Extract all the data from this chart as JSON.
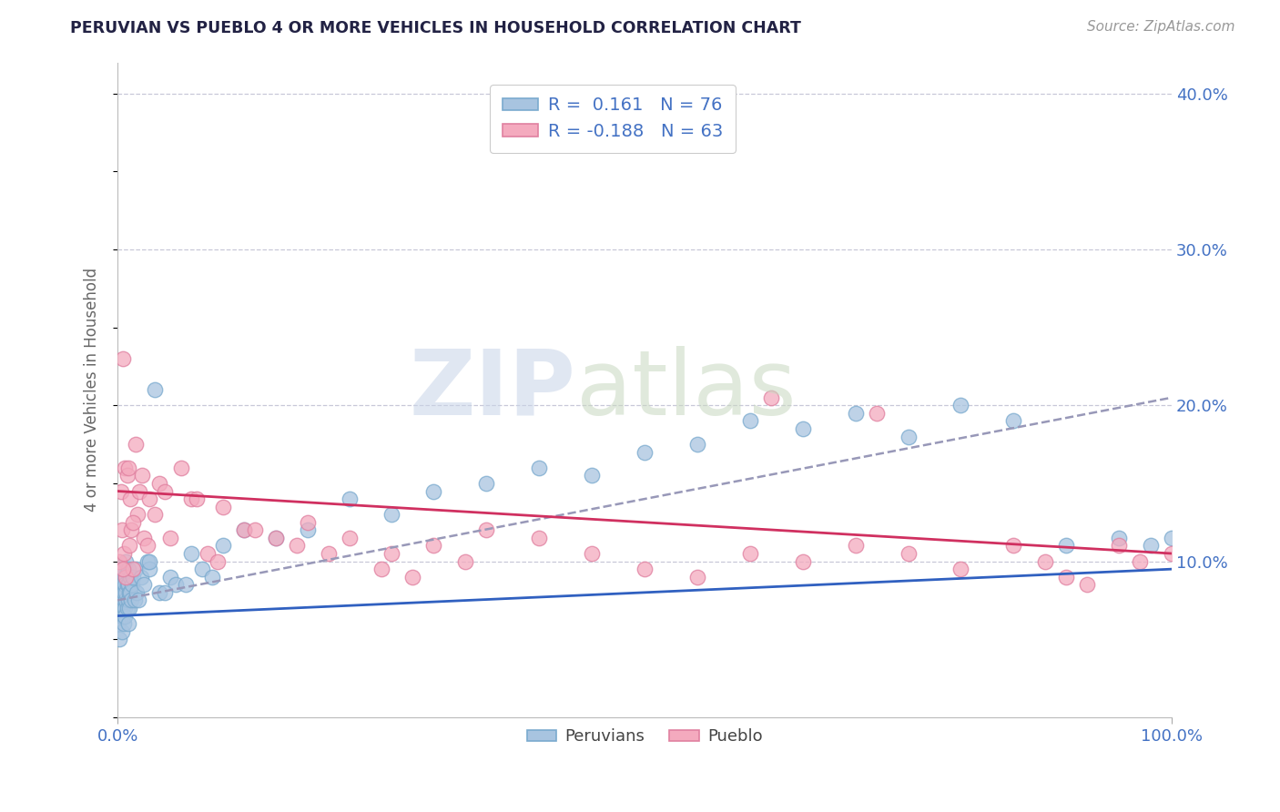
{
  "title": "PERUVIAN VS PUEBLO 4 OR MORE VEHICLES IN HOUSEHOLD CORRELATION CHART",
  "source": "Source: ZipAtlas.com",
  "ylabel_label": "4 or more Vehicles in Household",
  "xlim": [
    0.0,
    100.0
  ],
  "ylim": [
    0.0,
    42.0
  ],
  "yticks": [
    10.0,
    20.0,
    30.0,
    40.0
  ],
  "xticks": [
    0.0,
    100.0
  ],
  "legend_line1": "R =  0.161   N = 76",
  "legend_line2": "R = -0.188   N = 63",
  "blue_color": "#a8c4e0",
  "blue_edge": "#7aaace",
  "pink_color": "#f4aabe",
  "pink_edge": "#e080a0",
  "trend_blue": "#3060c0",
  "trend_pink": "#d03060",
  "trend_dash": "#9898b8",
  "grid_color": "#c8c8d8",
  "title_color": "#222244",
  "source_color": "#999999",
  "axis_tick_color": "#4472c4",
  "ylabel_color": "#666666",
  "peruvian_x": [
    0.1,
    0.2,
    0.2,
    0.3,
    0.3,
    0.3,
    0.4,
    0.4,
    0.4,
    0.5,
    0.5,
    0.5,
    0.5,
    0.6,
    0.6,
    0.6,
    0.7,
    0.7,
    0.7,
    0.7,
    0.8,
    0.8,
    0.8,
    0.9,
    0.9,
    1.0,
    1.0,
    1.0,
    1.0,
    1.1,
    1.1,
    1.2,
    1.2,
    1.3,
    1.4,
    1.5,
    1.6,
    1.7,
    1.8,
    2.0,
    2.2,
    2.5,
    2.8,
    3.0,
    3.5,
    4.0,
    5.0,
    5.5,
    6.5,
    8.0,
    10.0,
    12.0,
    15.0,
    18.0,
    22.0,
    26.0,
    30.0,
    35.0,
    40.0,
    45.0,
    50.0,
    55.0,
    60.0,
    65.0,
    70.0,
    75.0,
    80.0,
    85.0,
    90.0,
    95.0,
    98.0,
    100.0,
    3.0,
    4.5,
    7.0,
    9.0
  ],
  "peruvian_y": [
    6.0,
    7.5,
    5.0,
    8.0,
    6.5,
    9.0,
    7.0,
    8.5,
    5.5,
    8.0,
    7.0,
    6.5,
    9.5,
    7.5,
    8.0,
    6.0,
    7.0,
    9.0,
    8.5,
    6.5,
    7.5,
    8.0,
    10.0,
    8.5,
    7.0,
    7.5,
    8.5,
    9.5,
    6.0,
    8.0,
    7.0,
    9.0,
    8.0,
    7.5,
    8.5,
    9.0,
    7.5,
    9.5,
    8.0,
    7.5,
    9.0,
    8.5,
    10.0,
    9.5,
    21.0,
    8.0,
    9.0,
    8.5,
    8.5,
    9.5,
    11.0,
    12.0,
    11.5,
    12.0,
    14.0,
    13.0,
    14.5,
    15.0,
    16.0,
    15.5,
    17.0,
    17.5,
    19.0,
    18.5,
    19.5,
    18.0,
    20.0,
    19.0,
    11.0,
    11.5,
    11.0,
    11.5,
    10.0,
    8.0,
    10.5,
    9.0
  ],
  "pueblo_x": [
    0.2,
    0.3,
    0.4,
    0.5,
    0.6,
    0.7,
    0.8,
    0.9,
    1.0,
    1.1,
    1.2,
    1.3,
    1.5,
    1.7,
    1.9,
    2.1,
    2.3,
    2.5,
    3.0,
    3.5,
    4.0,
    5.0,
    6.0,
    7.0,
    8.5,
    10.0,
    12.0,
    15.0,
    18.0,
    22.0,
    26.0,
    30.0,
    35.0,
    40.0,
    45.0,
    50.0,
    55.0,
    60.0,
    65.0,
    70.0,
    75.0,
    80.0,
    85.0,
    88.0,
    90.0,
    92.0,
    95.0,
    97.0,
    100.0,
    62.0,
    72.0,
    0.5,
    1.5,
    2.8,
    4.5,
    7.5,
    9.5,
    13.0,
    17.0,
    20.0,
    25.0,
    28.0,
    33.0
  ],
  "pueblo_y": [
    10.0,
    14.5,
    12.0,
    23.0,
    10.5,
    16.0,
    9.0,
    15.5,
    16.0,
    11.0,
    14.0,
    12.0,
    9.5,
    17.5,
    13.0,
    14.5,
    15.5,
    11.5,
    14.0,
    13.0,
    15.0,
    11.5,
    16.0,
    14.0,
    10.5,
    13.5,
    12.0,
    11.5,
    12.5,
    11.5,
    10.5,
    11.0,
    12.0,
    11.5,
    10.5,
    9.5,
    9.0,
    10.5,
    10.0,
    11.0,
    10.5,
    9.5,
    11.0,
    10.0,
    9.0,
    8.5,
    11.0,
    10.0,
    10.5,
    20.5,
    19.5,
    9.5,
    12.5,
    11.0,
    14.5,
    14.0,
    10.0,
    12.0,
    11.0,
    10.5,
    9.5,
    9.0,
    10.0
  ],
  "trend_blue_start_y": 6.5,
  "trend_blue_end_y": 9.5,
  "trend_pink_start_y": 14.5,
  "trend_pink_end_y": 10.5,
  "trend_dash_start_y": 7.5,
  "trend_dash_end_y": 20.5
}
